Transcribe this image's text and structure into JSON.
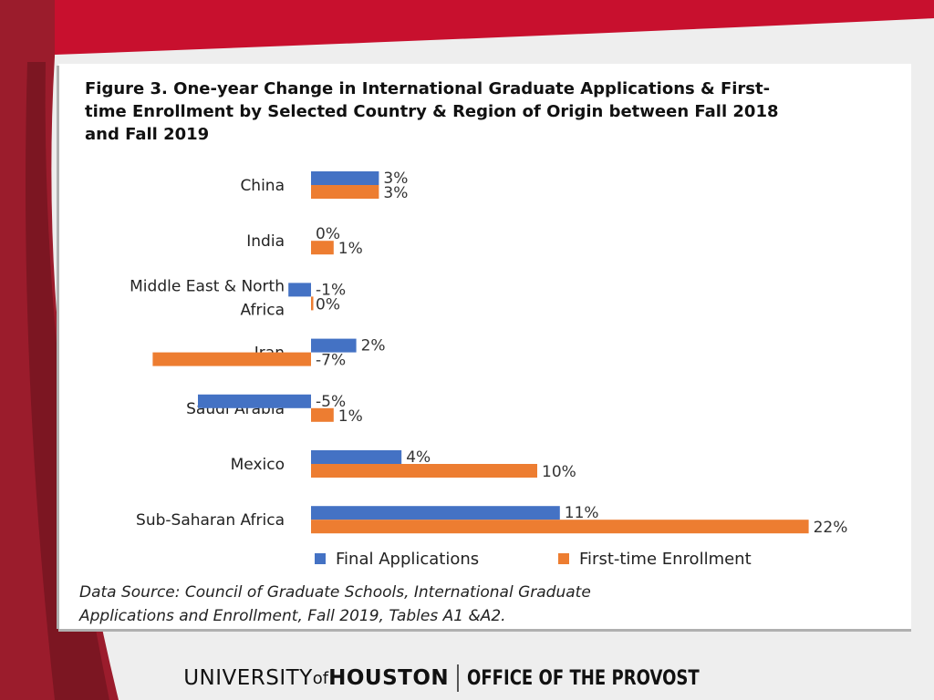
{
  "colors": {
    "brand_red": "#c8102e",
    "brand_dark_red": "#8b1a2b",
    "series_applications": "#4472c4",
    "series_enrollment": "#ed7d31"
  },
  "chart_data": {
    "type": "bar",
    "orientation": "horizontal",
    "title_lines": [
      "Figure 3. One-year Change in International Graduate Applications & First-",
      "time Enrollment by Selected Country & Region of Origin between Fall 2018",
      "and Fall 2019"
    ],
    "categories": [
      [
        "China"
      ],
      [
        "India"
      ],
      [
        "Middle East & North",
        "Africa"
      ],
      [
        "Iran"
      ],
      [
        "Saudi Arabia"
      ],
      [
        "Mexico"
      ],
      [
        "Sub-Saharan Africa"
      ]
    ],
    "series": [
      {
        "name": "Final Applications",
        "values": [
          3,
          0,
          -1,
          2,
          -5,
          4,
          11
        ],
        "labels": [
          "3%",
          "0%",
          "-1%",
          "2%",
          "-5%",
          "4%",
          "11%"
        ]
      },
      {
        "name": "First-time Enrollment",
        "values": [
          3,
          1,
          0,
          -7,
          1,
          10,
          22
        ],
        "labels": [
          "3%",
          "1%",
          "0%",
          "-7%",
          "1%",
          "10%",
          "22%"
        ]
      }
    ],
    "unit": "%",
    "legend_position": "bottom"
  },
  "source_lines": [
    "Data Source: Council of Graduate Schools, International Graduate",
    "Applications and Enrollment, Fall 2019, Tables A1 &A2."
  ],
  "footer": {
    "university": "UNIVERSITY",
    "of": "of",
    "houston": "HOUSTON",
    "office": "OFFICE OF THE PROVOST"
  }
}
